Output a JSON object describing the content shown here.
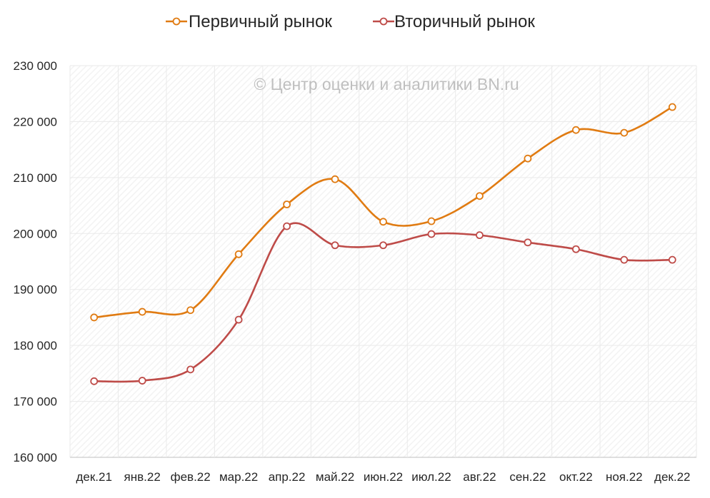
{
  "watermark": "© Центр оценки и аналитики BN.ru",
  "colors": {
    "primary": "#E07B12",
    "secondary": "#BE4B48",
    "grid": "#EAEAEA",
    "hatch": "#F3F3F3",
    "axis": "#BFBFBF"
  },
  "chart_data": {
    "type": "line",
    "categories": [
      "дек.21",
      "янв.22",
      "фев.22",
      "мар.22",
      "апр.22",
      "май.22",
      "июн.22",
      "июл.22",
      "авг.22",
      "сен.22",
      "окт.22",
      "ноя.22",
      "дек.22"
    ],
    "series": [
      {
        "name": "Первичный рынок",
        "color": "#E07B12",
        "values": [
          185000,
          186000,
          186300,
          196300,
          205200,
          209700,
          202100,
          202200,
          206700,
          213400,
          218500,
          218000,
          222600
        ]
      },
      {
        "name": "Вторичный рынок",
        "color": "#BE4B48",
        "values": [
          173600,
          173700,
          175700,
          184600,
          201300,
          197900,
          197900,
          199900,
          199700,
          198400,
          197200,
          195300,
          195300
        ]
      }
    ],
    "ylim": [
      160000,
      230000
    ],
    "yticks": [
      160000,
      170000,
      180000,
      190000,
      200000,
      210000,
      220000,
      230000
    ],
    "ytick_labels": [
      "160 000",
      "170 000",
      "180 000",
      "190 000",
      "200 000",
      "210 000",
      "220 000",
      "230 000"
    ],
    "grid": true,
    "legend_position": "top-center",
    "marker": "hollow-circle",
    "smooth": true
  }
}
